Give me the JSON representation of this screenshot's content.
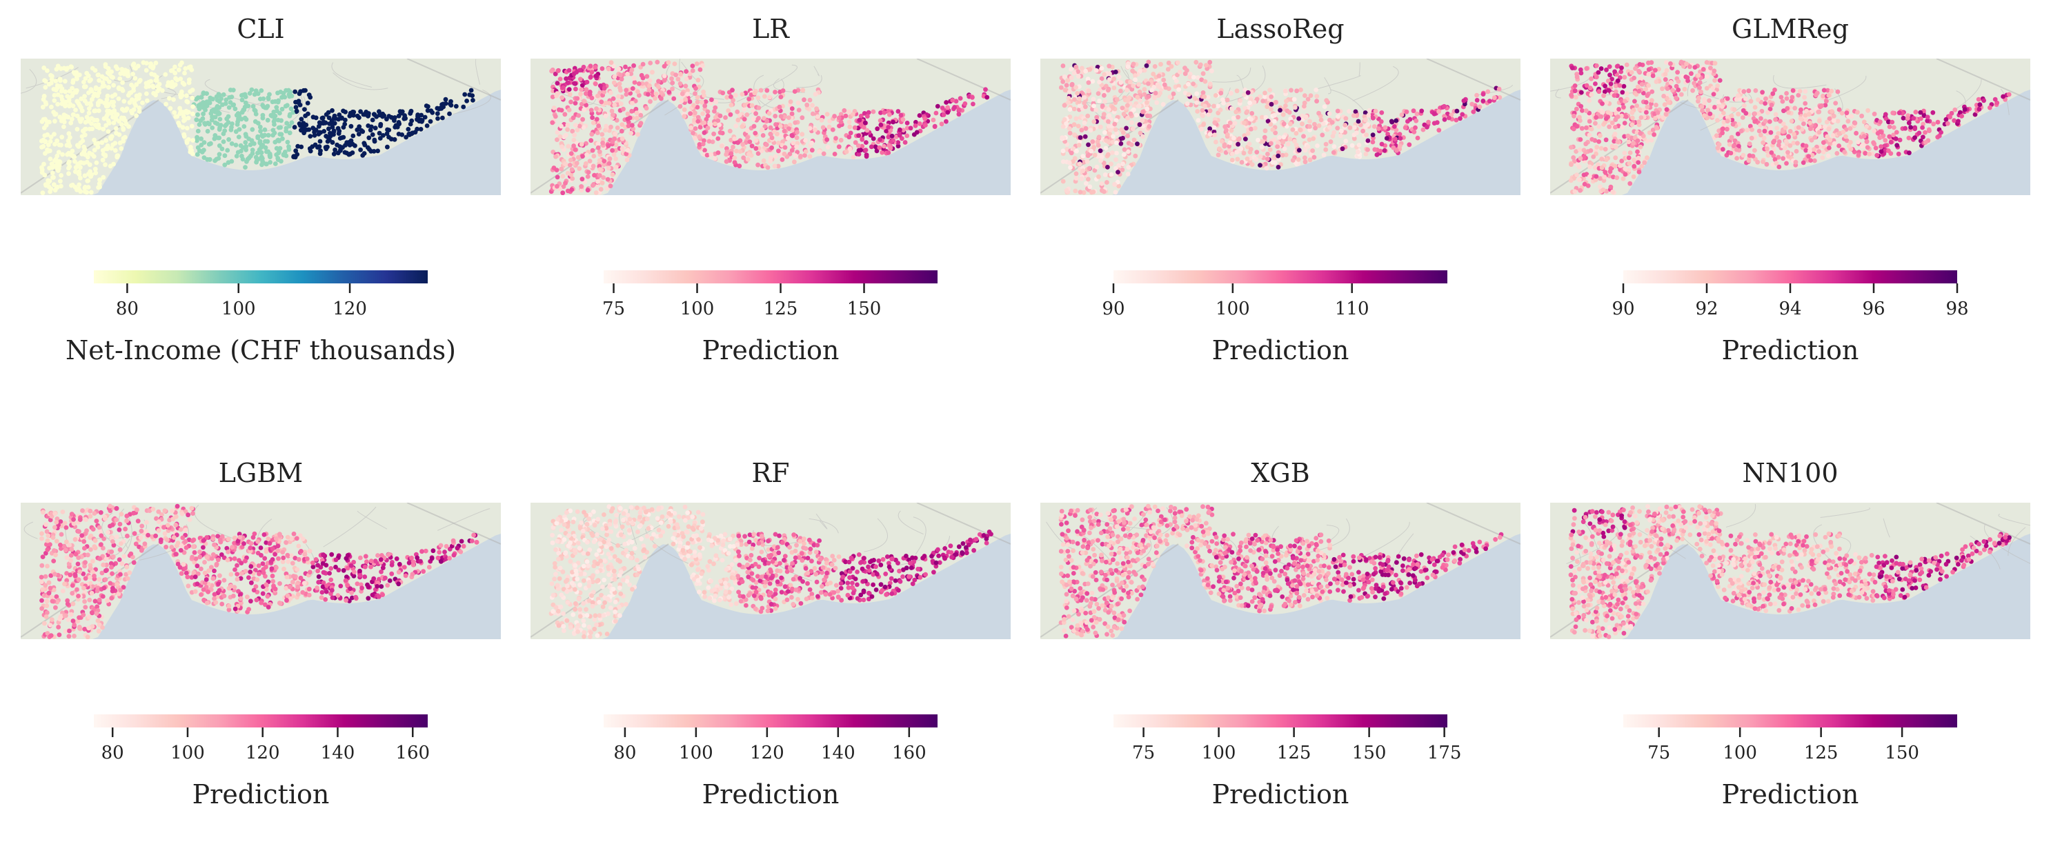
{
  "colors": {
    "water": "#ccd8e3",
    "land": "#e5e9dd",
    "road": "#bcbcbc",
    "ylgnbu": [
      "#ffffd9",
      "#edf8b1",
      "#c7e9b4",
      "#7fcdbb",
      "#41b6c4",
      "#1d91c0",
      "#225ea8",
      "#253494",
      "#081d58"
    ],
    "rdpu": [
      "#fff7f3",
      "#fde0dd",
      "#fcc5c0",
      "#fa9fb5",
      "#f768a1",
      "#dd3497",
      "#ae017e",
      "#7a0177",
      "#49006a"
    ]
  },
  "panels": [
    {
      "title": "CLI",
      "cmap": "ylgnbu",
      "style": "clusters",
      "min": 74,
      "max": 134,
      "ticks": [
        80,
        100,
        120
      ],
      "label": "Net-Income (CHF thousands)"
    },
    {
      "title": "LR",
      "cmap": "rdpu",
      "style": "west-east",
      "min": 72,
      "max": 172,
      "ticks": [
        75,
        100,
        125,
        150
      ],
      "label": "Prediction"
    },
    {
      "title": "LassoReg",
      "cmap": "rdpu",
      "style": "lasso",
      "min": 90,
      "max": 118,
      "ticks": [
        90,
        100,
        110
      ],
      "label": "Prediction"
    },
    {
      "title": "GLMReg",
      "cmap": "rdpu",
      "style": "west-east",
      "min": 90,
      "max": 98,
      "ticks": [
        90,
        92,
        94,
        96,
        98
      ],
      "label": "Prediction"
    },
    {
      "title": "LGBM",
      "cmap": "rdpu",
      "style": "gradient",
      "min": 75,
      "max": 164,
      "ticks": [
        80,
        100,
        120,
        140,
        160
      ],
      "label": "Prediction"
    },
    {
      "title": "RF",
      "cmap": "rdpu",
      "style": "rf",
      "min": 74,
      "max": 168,
      "ticks": [
        80,
        100,
        120,
        140,
        160
      ],
      "label": "Prediction"
    },
    {
      "title": "XGB",
      "cmap": "rdpu",
      "style": "gradient",
      "min": 65,
      "max": 176,
      "ticks": [
        75,
        100,
        125,
        150,
        175
      ],
      "label": "Prediction"
    },
    {
      "title": "NN100",
      "cmap": "rdpu",
      "style": "west-east",
      "min": 64,
      "max": 167,
      "ticks": [
        75,
        100,
        125,
        150
      ],
      "label": "Prediction"
    }
  ]
}
